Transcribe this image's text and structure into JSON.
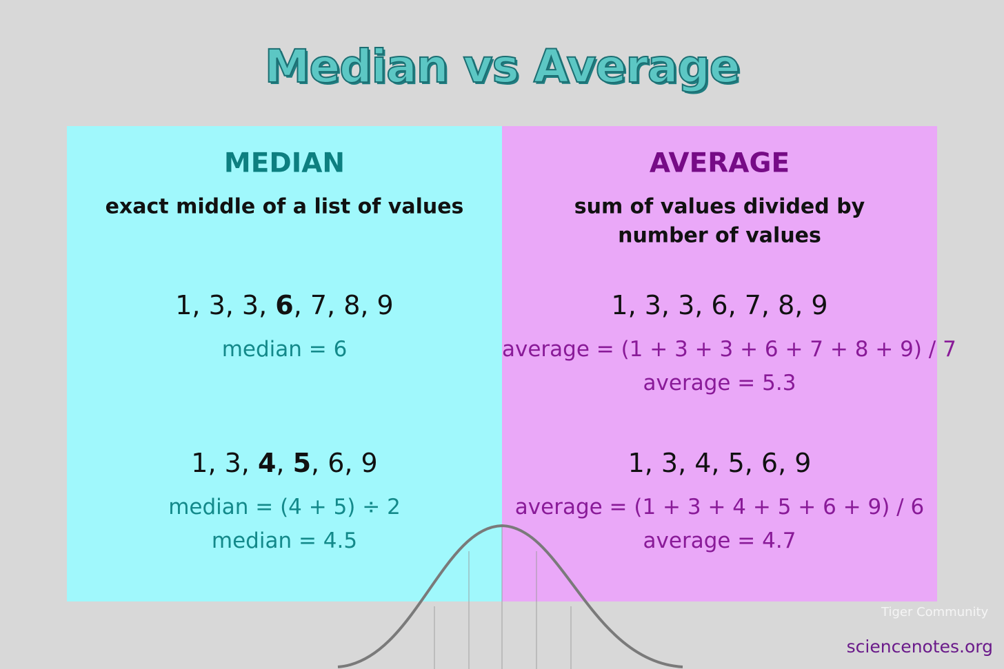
{
  "title": "Median vs Average",
  "panels": [
    {
      "heading": "MEDIAN",
      "description": [
        "exact middle of a list of values"
      ],
      "examples": [
        {
          "list": [
            {
              "text": "1, 3, 3, "
            },
            {
              "text": "6",
              "bold": true
            },
            {
              "text": ", 7, 8, 9"
            }
          ],
          "results": [
            "median = 6"
          ]
        },
        {
          "list": [
            {
              "text": "1, 3, "
            },
            {
              "text": "4",
              "bold": true
            },
            {
              "text": ", "
            },
            {
              "text": "5",
              "bold": true
            },
            {
              "text": ", 6, 9"
            }
          ],
          "results": [
            "median = (4 + 5) ÷ 2",
            "median = 4.5"
          ]
        }
      ]
    },
    {
      "heading": "AVERAGE",
      "description": [
        "sum of values divided by",
        "number of values"
      ],
      "examples": [
        {
          "list": [
            {
              "text": "1, 3, 3, 6, 7, 8, 9"
            }
          ],
          "results": [
            "average = (1 + 3 + 3 + 6 + 7 + 8 + 9) / 7",
            "average = 5.3"
          ]
        },
        {
          "list": [
            {
              "text": "1, 3, 4, 5, 6, 9"
            }
          ],
          "results": [
            "average = (1 + 3 + 4 + 5 + 6 + 9) / 6",
            "average = 4.7"
          ]
        }
      ]
    }
  ],
  "watermark": "Tiger Community",
  "credit": "sciencenotes.org"
}
